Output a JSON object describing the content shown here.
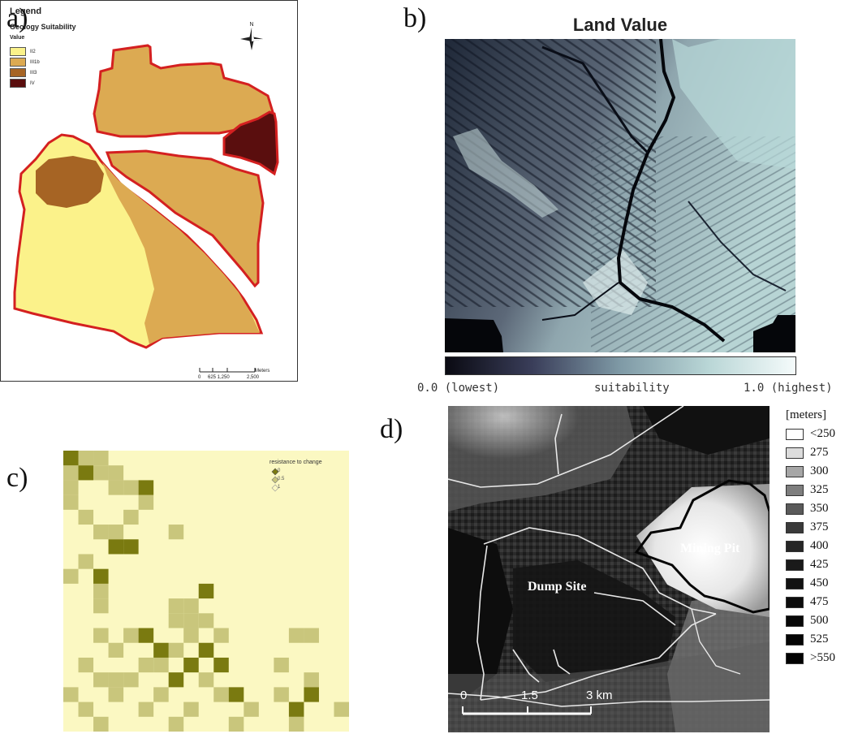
{
  "panels": {
    "a": {
      "letter": "a)",
      "legend_title": "Legend",
      "legend_subtitle": "Geology Suitability",
      "legend_value": "Value",
      "classes": [
        {
          "label": "II2",
          "color": "#fbf28a"
        },
        {
          "label": "III1b",
          "color": "#dcaa52"
        },
        {
          "label": "III3",
          "color": "#a66424"
        },
        {
          "label": "IV",
          "color": "#5a0e0e"
        }
      ],
      "north_label": "N",
      "scale_labels": [
        "0",
        "625 1,250",
        "2,500"
      ],
      "scale_unit": "Meters",
      "outline_color": "#d42020"
    },
    "b": {
      "letter": "b)",
      "title": "Land Value",
      "colorbar_left": "0.0 (lowest)",
      "colorbar_mid": "suitability",
      "colorbar_right": "1.0 (highest)",
      "color_low": "#0a0a12",
      "color_high": "#f5fbfb"
    },
    "c": {
      "letter": "c)",
      "legend_title": "resistance to change",
      "legend_items": [
        "0",
        "0.5",
        "1"
      ],
      "colors": {
        "0": "#7a7a10",
        "0.5": "#c9c67c",
        "1": "#fbf8c2"
      }
    },
    "d": {
      "letter": "d)",
      "legend_title": "[meters]",
      "legend_items": [
        {
          "label": "<250",
          "color": "#ffffff"
        },
        {
          "label": "275",
          "color": "#dcdcdc"
        },
        {
          "label": "300",
          "color": "#a6a6a6"
        },
        {
          "label": "325",
          "color": "#7e7e7e"
        },
        {
          "label": "350",
          "color": "#5a5a5a"
        },
        {
          "label": "375",
          "color": "#3a3a3a"
        },
        {
          "label": "400",
          "color": "#262626"
        },
        {
          "label": "425",
          "color": "#1a1a1a"
        },
        {
          "label": "450",
          "color": "#121212"
        },
        {
          "label": "475",
          "color": "#0c0c0c"
        },
        {
          "label": "500",
          "color": "#080808"
        },
        {
          "label": "525",
          "color": "#050505"
        },
        {
          "label": ">550",
          "color": "#020202"
        }
      ],
      "mining_pit_label": "Mining Pit",
      "dump_site_label": "Dump Site",
      "scale_labels": [
        "0",
        "1.5",
        "3 km"
      ]
    }
  }
}
